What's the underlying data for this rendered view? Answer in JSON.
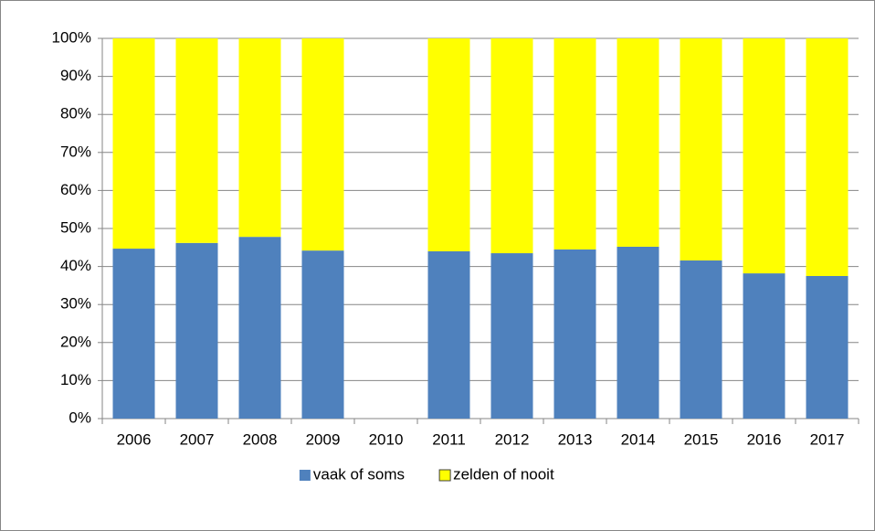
{
  "chart_data": {
    "type": "stacked_bar",
    "categories": [
      "2006",
      "2007",
      "2008",
      "2009",
      "2010",
      "2011",
      "2012",
      "2013",
      "2014",
      "2015",
      "2016",
      "2017"
    ],
    "series": [
      {
        "name": "vaak of soms",
        "color": "#4f81bd",
        "values": [
          44.7,
          46.2,
          47.8,
          44.2,
          null,
          44,
          43.5,
          44.5,
          45.2,
          41.6,
          38.2,
          37.5
        ]
      },
      {
        "name": "zelden of nooit",
        "color": "#ffff00",
        "values": [
          55.3,
          53.8,
          52.2,
          55.8,
          null,
          56,
          56.5,
          55.5,
          54.8,
          58.4,
          61.8,
          62.5
        ]
      }
    ],
    "ylim": [
      0,
      100
    ],
    "yticks": [
      {
        "value": 0,
        "label": "0%"
      },
      {
        "value": 10,
        "label": "10%"
      },
      {
        "value": 20,
        "label": "20%"
      },
      {
        "value": 30,
        "label": "30%"
      },
      {
        "value": 40,
        "label": "40%"
      },
      {
        "value": 50,
        "label": "50%"
      },
      {
        "value": 60,
        "label": "60%"
      },
      {
        "value": 70,
        "label": "70%"
      },
      {
        "value": 80,
        "label": "80%"
      },
      {
        "value": 90,
        "label": "90%"
      },
      {
        "value": 100,
        "label": "100%"
      }
    ],
    "grid": true,
    "legend": "bottom"
  }
}
